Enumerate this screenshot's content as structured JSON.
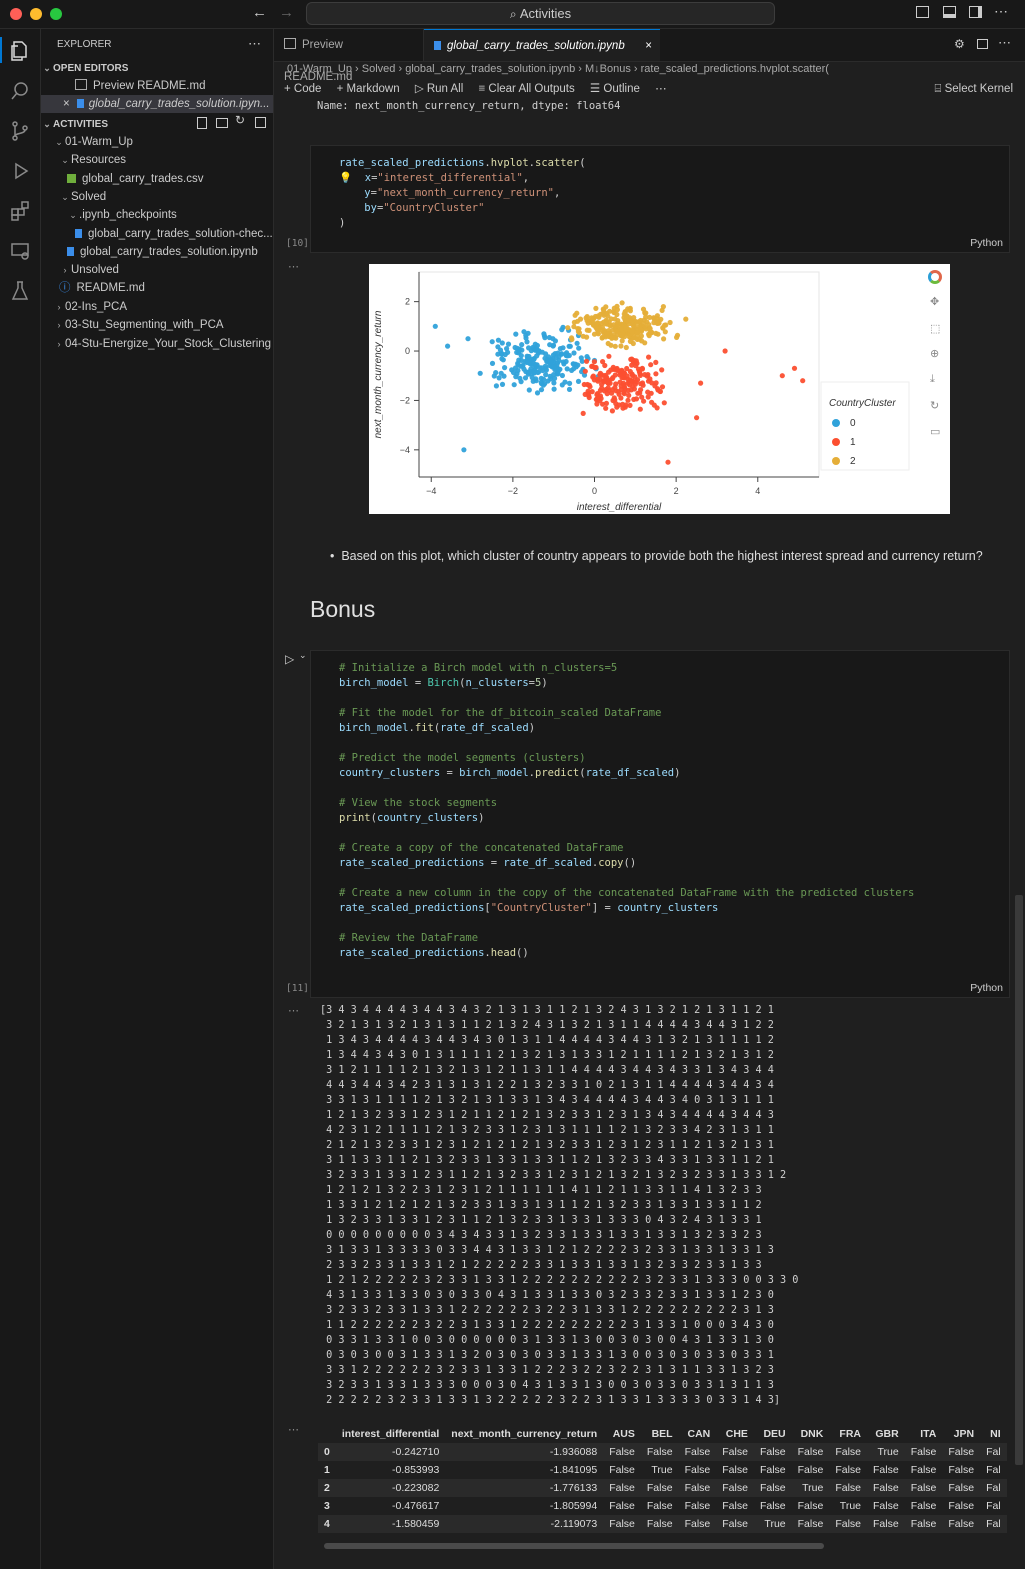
{
  "titlebar": {
    "search": "Activities"
  },
  "sidebar": {
    "title": "EXPLORER",
    "open_editors_title": "OPEN EDITORS",
    "open_editors": [
      "Preview README.md",
      "global_carry_trades_solution.ipyn..."
    ],
    "workspace_title": "ACTIVITIES",
    "tree": [
      "01-Warm_Up",
      "Resources",
      "global_carry_trades.csv",
      "Solved",
      ".ipynb_checkpoints",
      "global_carry_trades_solution-chec...",
      "global_carry_trades_solution.ipynb",
      "Unsolved",
      "README.md",
      "02-Ins_PCA",
      "03-Stu_Segmenting_with_PCA",
      "04-Stu-Energize_Your_Stock_Clustering"
    ]
  },
  "tabs": [
    "Preview README.md",
    "global_carry_trades_solution.ipynb"
  ],
  "breadcrumb": [
    "01-Warm_Up",
    "Solved",
    "global_carry_trades_solution.ipynb",
    "M↓Bonus",
    "rate_scaled_predictions.hvplot.scatter("
  ],
  "toolbar": {
    "code": "Code",
    "markdown": "Markdown",
    "run_all": "Run All",
    "clear": "Clear All Outputs",
    "outline": "Outline",
    "kernel": "Select Kernel"
  },
  "prev_output": "Name: next_month_currency_return, dtype: float64",
  "cell10": {
    "exec": "[10]",
    "lang": "Python"
  },
  "cell11": {
    "exec": "[11]",
    "lang": "Python"
  },
  "question": "Based on this plot, which cluster of country appears to provide both the highest interest spread and currency return?",
  "bonus_heading": "Bonus",
  "chart_data": {
    "type": "scatter",
    "xlabel": "interest_differential",
    "ylabel": "next_month_currency_return",
    "xlim": [
      -4.3,
      5.5
    ],
    "ylim": [
      -5.1,
      3.2
    ],
    "xticks": [
      -4,
      -2,
      0,
      2,
      4
    ],
    "yticks": [
      -4,
      -2,
      0,
      2
    ],
    "legend_title": "CountryCluster",
    "legend_position": "right",
    "series": [
      {
        "name": "0",
        "color": "#30a2da"
      },
      {
        "name": "1",
        "color": "#fc4f30"
      },
      {
        "name": "2",
        "color": "#e5ae38"
      }
    ]
  },
  "clusters_output": "[3 4 3 4 4 4 4 3 4 4 3 4 3 2 1 3 1 3 1 1 2 1 3 2 4 3 1 3 2 1 2 1 3 1 1 2 1\n 3 2 1 3 1 3 2 1 3 1 3 1 1 2 1 3 2 4 3 1 3 2 1 3 1 1 4 4 4 4 3 4 4 3 1 2 2\n 1 3 4 3 4 4 4 4 3 4 4 3 4 3 0 1 3 1 1 4 4 4 4 3 4 4 3 1 3 2 1 3 1 1 1 1 2\n 1 3 4 4 3 4 3 0 1 3 1 1 1 1 2 1 3 2 1 3 1 3 3 1 2 1 1 1 1 2 1 3 2 1 3 1 2\n 3 1 2 1 1 1 1 2 1 3 2 1 3 1 2 1 1 3 1 1 4 4 4 4 3 4 4 3 4 3 3 1 3 4 3 4 4\n 4 4 3 4 4 3 4 2 3 1 3 1 3 1 2 2 1 3 2 3 3 1 0 2 1 3 1 1 4 4 4 4 3 4 4 3 4\n 3 3 1 3 1 1 1 1 2 1 3 2 1 3 1 3 3 1 3 4 3 4 4 4 4 3 4 4 3 4 0 3 1 3 1 1 1\n 1 2 1 3 2 3 3 1 2 3 1 2 1 1 2 1 2 1 3 2 3 3 1 2 3 1 3 4 3 4 4 4 4 3 4 4 3\n 4 2 3 1 2 1 1 1 1 2 1 3 2 3 3 1 2 3 1 3 1 1 1 1 2 1 3 2 3 3 4 2 3 1 3 1 1\n 2 1 2 1 3 2 3 3 1 2 3 1 2 1 2 1 2 1 3 2 3 3 1 2 3 1 2 3 1 1 2 1 3 2 1 3 1\n 3 1 1 3 3 1 1 2 1 3 2 3 3 1 3 3 1 3 3 1 1 2 1 3 2 3 3 4 3 3 1 3 3 1 1 2 1\n 3 2 3 3 1 3 3 1 2 3 1 1 2 1 3 2 3 3 1 2 3 1 2 1 3 2 1 3 2 3 2 3 3 1 3 3 1 2\n 1 2 1 2 1 3 2 2 3 1 2 3 1 2 1 1 1 1 1 1 4 1 1 2 1 1 3 3 1 1 4 1 3 2 3 3\n 1 3 3 1 2 1 2 1 2 1 3 2 3 3 1 3 3 1 3 1 1 2 1 3 2 3 3 1 3 3 1 3 3 1 1 2\n 1 3 2 3 3 1 3 3 1 2 3 1 1 2 1 3 2 3 3 1 3 3 1 3 3 3 0 4 3 2 4 3 1 3 3 1\n 0 0 0 0 0 0 0 0 0 3 4 3 4 3 3 1 3 2 3 3 1 3 3 1 3 3 1 3 3 1 3 2 3 3 2 3\n 3 1 3 3 1 3 3 3 3 0 3 3 4 4 3 1 3 3 1 2 1 2 2 2 2 3 2 3 3 1 3 3 1 3 3 1 3\n 2 3 3 2 3 3 1 3 3 1 2 1 2 2 2 2 2 3 3 1 3 3 1 3 3 1 3 2 3 3 2 3 3 1 3 3\n 1 2 1 2 2 2 2 2 3 2 3 3 1 3 3 1 2 2 2 2 2 2 2 2 2 2 3 2 3 3 1 3 3 3 0 0 3 3 0\n 4 3 1 3 3 1 3 3 0 3 0 3 3 0 4 3 1 3 3 1 3 3 0 3 2 3 3 2 3 3 1 3 3 1 2 3 0\n 3 2 3 3 2 3 3 1 3 3 1 2 2 2 2 2 2 3 2 2 3 1 3 3 1 2 2 2 2 2 2 2 2 2 3 1 3\n 1 1 2 2 2 2 2 2 3 2 2 3 1 3 3 1 2 2 2 2 2 2 2 2 2 3 1 3 3 1 0 0 0 3 4 3 0\n 0 3 3 1 3 3 1 0 0 3 0 0 0 0 0 0 3 1 3 3 1 3 0 0 3 0 3 0 0 4 3 1 3 3 1 3 0\n 0 3 0 3 0 0 3 1 3 3 1 3 2 0 3 0 3 0 3 3 1 3 3 1 3 0 0 3 0 3 0 3 3 0 3 3 1\n 3 3 1 2 2 2 2 2 2 3 2 3 3 1 3 3 1 2 2 2 3 2 2 3 2 2 3 1 3 1 1 3 3 1 3 2 3\n 3 2 3 3 1 3 3 1 3 3 3 0 0 0 3 0 4 3 1 3 3 1 3 0 0 3 0 3 3 0 3 3 1 3 1 1 3\n 2 2 2 2 2 3 2 3 3 1 3 3 1 3 2 2 2 2 2 3 2 2 3 1 3 3 1 3 3 3 3 0 3 3 1 4 3]",
  "dataframe": {
    "columns": [
      "",
      "interest_differential",
      "next_month_currency_return",
      "AUS",
      "BEL",
      "CAN",
      "CHE",
      "DEU",
      "DNK",
      "FRA",
      "GBR",
      "ITA",
      "JPN",
      "NI"
    ],
    "rows": [
      [
        "0",
        "-0.242710",
        "-1.936088",
        "False",
        "False",
        "False",
        "False",
        "False",
        "False",
        "False",
        "True",
        "False",
        "False",
        "Fal"
      ],
      [
        "1",
        "-0.853993",
        "-1.841095",
        "False",
        "True",
        "False",
        "False",
        "False",
        "False",
        "False",
        "False",
        "False",
        "False",
        "Fal"
      ],
      [
        "2",
        "-0.223082",
        "-1.776133",
        "False",
        "False",
        "False",
        "False",
        "False",
        "True",
        "False",
        "False",
        "False",
        "False",
        "Fal"
      ],
      [
        "3",
        "-0.476617",
        "-1.805994",
        "False",
        "False",
        "False",
        "False",
        "False",
        "False",
        "True",
        "False",
        "False",
        "False",
        "Fal"
      ],
      [
        "4",
        "-1.580459",
        "-2.119073",
        "False",
        "False",
        "False",
        "False",
        "True",
        "False",
        "False",
        "False",
        "False",
        "False",
        "Fal"
      ]
    ]
  }
}
